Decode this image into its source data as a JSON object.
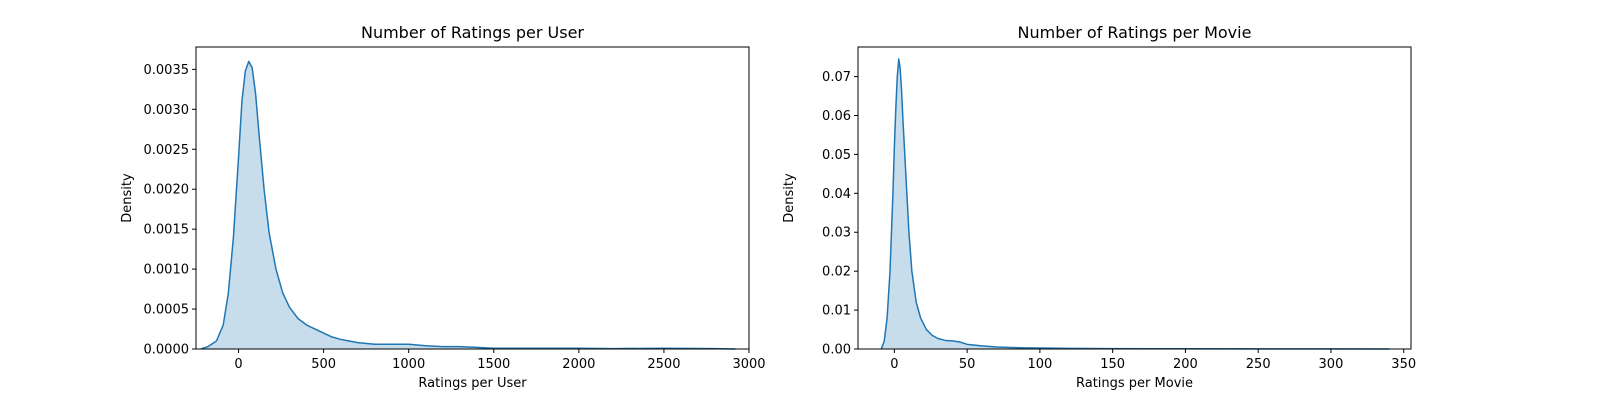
{
  "colors": {
    "line": "#1f77b4",
    "fill": "#1f77b4",
    "axes": "#000000",
    "background": "#ffffff"
  },
  "chart_data": [
    {
      "type": "area",
      "title": "Number of Ratings per User",
      "xlabel": "Ratings per User",
      "ylabel": "Density",
      "xlim": [
        -250,
        3000
      ],
      "ylim": [
        0,
        0.00378
      ],
      "x_ticks": [
        0,
        500,
        1000,
        1500,
        2000,
        2500,
        3000
      ],
      "x_tick_labels": [
        "0",
        "500",
        "1000",
        "1500",
        "2000",
        "2500",
        "3000"
      ],
      "y_ticks": [
        0,
        0.0005,
        0.001,
        0.0015,
        0.002,
        0.0025,
        0.003,
        0.0035
      ],
      "y_tick_labels": [
        "0.0000",
        "0.0005",
        "0.0010",
        "0.0015",
        "0.0020",
        "0.0025",
        "0.0030",
        "0.0035"
      ],
      "grid": false,
      "fill": true,
      "series": [
        {
          "x": [
            -220,
            -180,
            -130,
            -90,
            -60,
            -30,
            0,
            20,
            40,
            60,
            80,
            100,
            120,
            150,
            180,
            220,
            260,
            300,
            350,
            400,
            450,
            500,
            550,
            600,
            700,
            800,
            900,
            1000,
            1100,
            1200,
            1300,
            1400,
            1500,
            1600,
            1800,
            2000,
            2200,
            2400,
            2500,
            2600,
            2800,
            2920
          ],
          "y": [
            0,
            3e-05,
            0.0001,
            0.0003,
            0.0007,
            0.0014,
            0.0024,
            0.0031,
            0.00348,
            0.0036,
            0.00352,
            0.0032,
            0.0027,
            0.002,
            0.00145,
            0.001,
            0.0007,
            0.00052,
            0.00038,
            0.0003,
            0.00025,
            0.0002,
            0.00015,
            0.00012,
            8e-05,
            6e-05,
            6e-05,
            6e-05,
            4e-05,
            3e-05,
            3e-05,
            2e-05,
            1e-05,
            1e-05,
            1e-05,
            1e-05,
            5e-06,
            8e-06,
            1e-05,
            8e-06,
            4e-06,
            0
          ]
        }
      ]
    },
    {
      "type": "area",
      "title": "Number of Ratings per Movie",
      "xlabel": "Ratings per Movie",
      "ylabel": "Density",
      "xlim": [
        -25,
        355
      ],
      "ylim": [
        0,
        0.0776
      ],
      "x_ticks": [
        0,
        50,
        100,
        150,
        200,
        250,
        300,
        350
      ],
      "x_tick_labels": [
        "0",
        "50",
        "100",
        "150",
        "200",
        "250",
        "300",
        "350"
      ],
      "y_ticks": [
        0,
        0.01,
        0.02,
        0.03,
        0.04,
        0.05,
        0.06,
        0.07
      ],
      "y_tick_labels": [
        "0.00",
        "0.01",
        "0.02",
        "0.03",
        "0.04",
        "0.05",
        "0.06",
        "0.07"
      ],
      "grid": false,
      "fill": true,
      "series": [
        {
          "x": [
            -9,
            -7,
            -5,
            -3,
            -1,
            0,
            1,
            2,
            3,
            4,
            5,
            6,
            8,
            10,
            12,
            15,
            18,
            22,
            26,
            30,
            35,
            40,
            45,
            50,
            55,
            60,
            70,
            80,
            90,
            100,
            120,
            150,
            200,
            250,
            300,
            340
          ],
          "y": [
            0,
            0.002,
            0.008,
            0.02,
            0.04,
            0.052,
            0.062,
            0.07,
            0.0745,
            0.072,
            0.066,
            0.058,
            0.044,
            0.03,
            0.02,
            0.012,
            0.008,
            0.005,
            0.0035,
            0.0027,
            0.0022,
            0.0021,
            0.0018,
            0.0012,
            0.001,
            0.0008,
            0.0005,
            0.0004,
            0.0003,
            0.00025,
            0.00015,
            0.0001,
            5e-05,
            3e-05,
            2e-05,
            0
          ]
        }
      ]
    }
  ]
}
